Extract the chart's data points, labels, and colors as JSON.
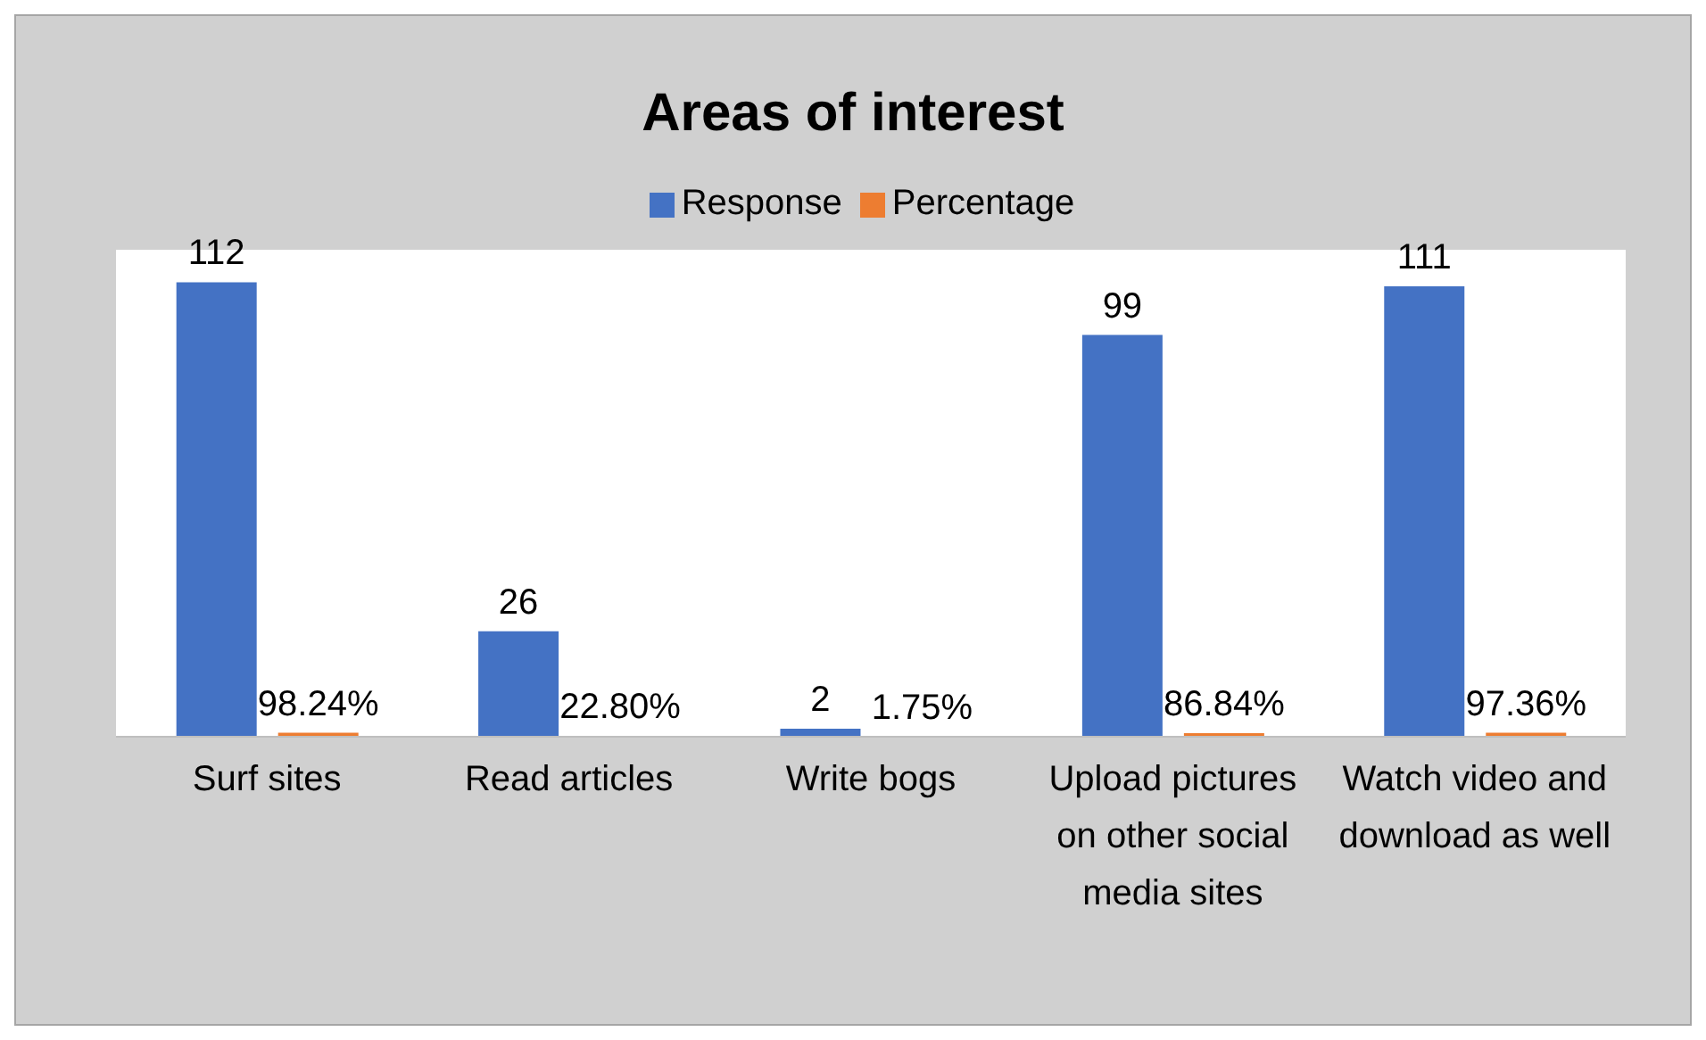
{
  "chart_data": {
    "type": "bar",
    "title": "Areas of interest",
    "categories": [
      "Surf sites",
      "Read articles",
      "Write bogs",
      "Upload pictures on other social media sites",
      "Watch video and download as well"
    ],
    "series": [
      {
        "name": "Response",
        "color": "#4472c4",
        "values": [
          112,
          26,
          2,
          99,
          111
        ],
        "value_labels": [
          "112",
          "26",
          "2",
          "99",
          "111"
        ]
      },
      {
        "name": "Percentage",
        "color": "#ed7d31",
        "values": [
          0.9824,
          0.228,
          0.0175,
          0.8684,
          0.9736
        ],
        "value_labels": [
          "98.24%",
          "22.80%",
          "1.75%",
          "86.84%",
          "97.36%"
        ]
      }
    ],
    "ylim": [
      0,
      120
    ],
    "tick_labels": "x",
    "legend": "top"
  }
}
